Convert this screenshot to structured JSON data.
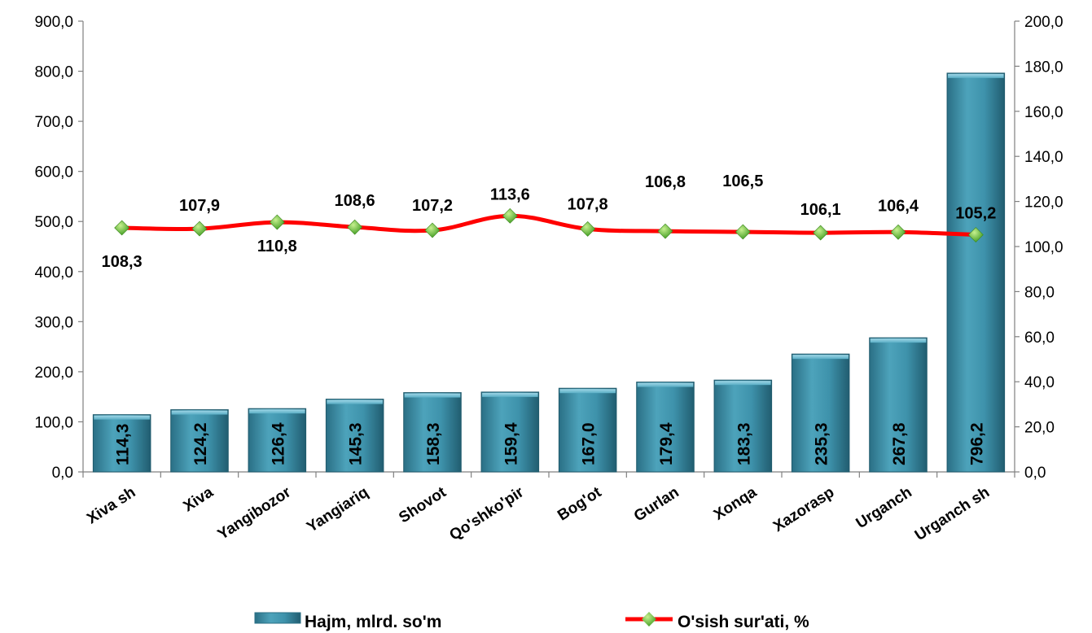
{
  "chart_data": {
    "type": "bar+line",
    "categories": [
      "Xiva sh",
      "Xiva",
      "Yangibozor",
      "Yangiariq",
      "Shovot",
      "Qo'shko'pir",
      "Bog'ot",
      "Gurlan",
      "Xonqa",
      "Xazorasp",
      "Urganch",
      "Urganch sh"
    ],
    "series": [
      {
        "name": "Hajm, mlrd. so'm",
        "type": "bar",
        "axis": "left",
        "values": [
          114.3,
          124.2,
          126.4,
          145.3,
          158.3,
          159.4,
          167.0,
          179.4,
          183.3,
          235.3,
          267.8,
          796.2
        ],
        "labels": [
          "114,3",
          "124,2",
          "126,4",
          "145,3",
          "158,3",
          "159,4",
          "167,0",
          "179,4",
          "183,3",
          "235,3",
          "267,8",
          "796,2"
        ],
        "color": "#3a8fa6"
      },
      {
        "name": "O'sish sur'ati, %",
        "type": "line",
        "axis": "right",
        "values": [
          108.3,
          107.9,
          110.8,
          108.6,
          107.2,
          113.6,
          107.8,
          106.8,
          106.5,
          106.1,
          106.4,
          105.2
        ],
        "labels": [
          "108,3",
          "107,9",
          "110,8",
          "108,6",
          "107,2",
          "113,6",
          "107,8",
          "106,8",
          "106,5",
          "106,1",
          "106,4",
          "105,2"
        ],
        "color": "#ff0000",
        "marker_color": "#6fbf3a"
      }
    ],
    "y_left": {
      "range": [
        0,
        900
      ],
      "ticks": [
        "0,0",
        "100,0",
        "200,0",
        "300,0",
        "400,0",
        "500,0",
        "600,0",
        "700,0",
        "800,0",
        "900,0"
      ]
    },
    "y_right": {
      "range": [
        0,
        200
      ],
      "ticks": [
        "0,0",
        "20,0",
        "40,0",
        "60,0",
        "80,0",
        "100,0",
        "120,0",
        "140,0",
        "160,0",
        "180,0",
        "200,0"
      ]
    },
    "grid": false,
    "legend_position": "bottom"
  }
}
